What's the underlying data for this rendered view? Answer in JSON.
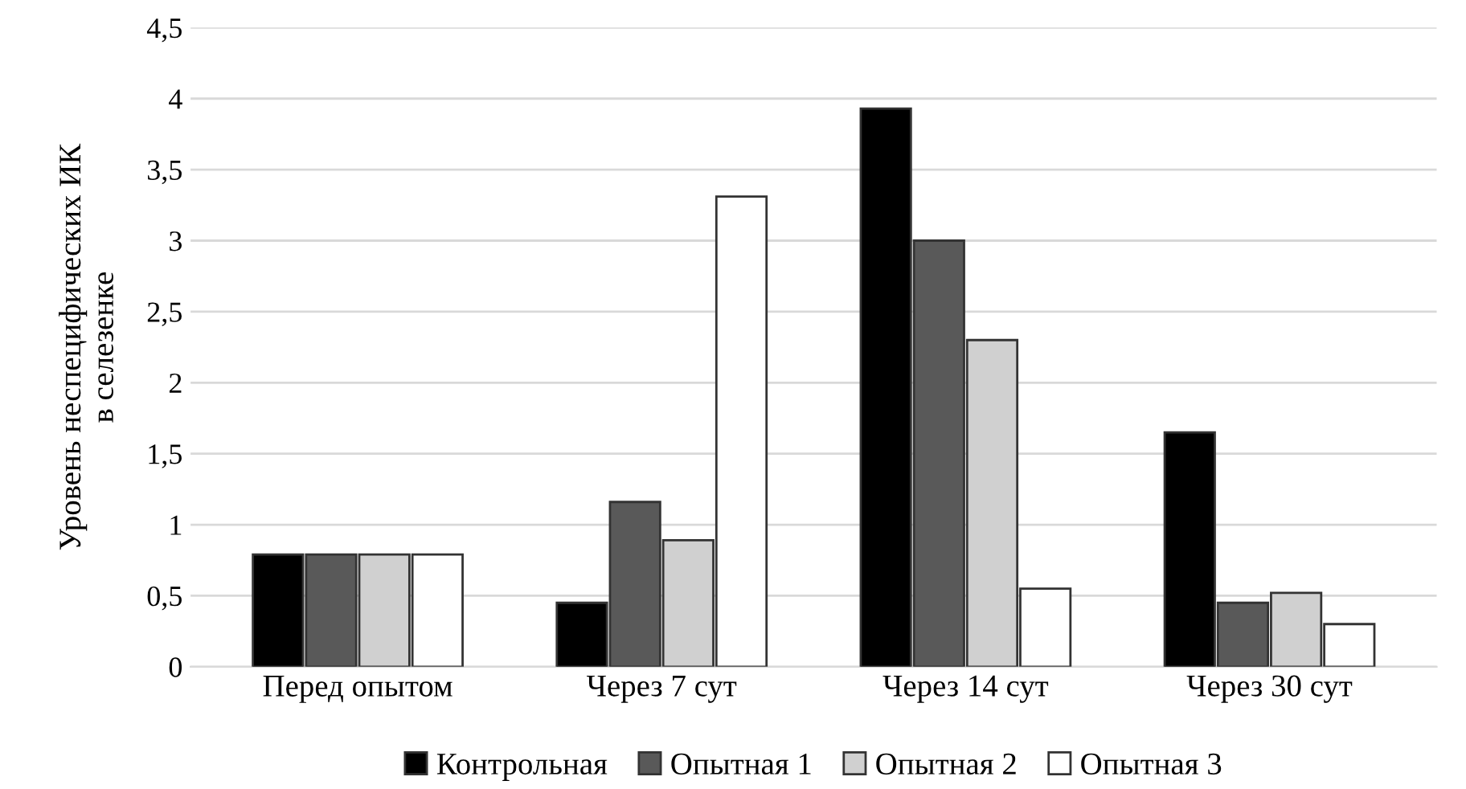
{
  "chart_data": {
    "type": "bar",
    "ylabel": "Уровень неспецифических ИК\nв селезенке",
    "categories": [
      "Перед опытом",
      "Через 7 сут",
      "Через 14 сут",
      "Через 30 сут"
    ],
    "series": [
      {
        "name": "Контрольная",
        "color": "#000000",
        "values": [
          0.79,
          0.45,
          3.93,
          1.65
        ]
      },
      {
        "name": "Опытная 1",
        "color": "#595959",
        "values": [
          0.79,
          1.16,
          3.0,
          0.45
        ]
      },
      {
        "name": "Опытная 2",
        "color": "#d0d0d0",
        "values": [
          0.79,
          0.89,
          2.3,
          0.52
        ]
      },
      {
        "name": "Опытная 3",
        "color": "#ffffff",
        "values": [
          0.79,
          3.31,
          0.55,
          0.3
        ]
      }
    ],
    "ylim": [
      0,
      4.5
    ],
    "yticks": [
      0,
      {
        "value": 0.5,
        "label": "0,5"
      },
      1,
      {
        "value": 1.5,
        "label": "1,5"
      },
      2,
      {
        "value": 2.5,
        "label": "2,5"
      },
      3,
      {
        "value": 3.5,
        "label": "3,5"
      },
      4,
      {
        "value": 4.5,
        "label": "4,5"
      }
    ],
    "grid": "y",
    "legend": "bottom"
  }
}
